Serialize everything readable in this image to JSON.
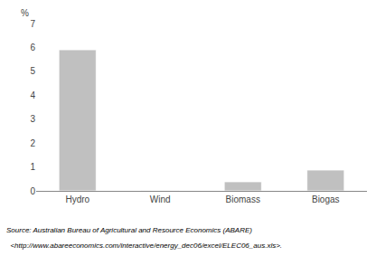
{
  "chart_data": {
    "type": "bar",
    "ylabel": "%",
    "categories": [
      "Hydro",
      "Wind",
      "Biomass",
      "Biogas"
    ],
    "values": [
      5.9,
      0.02,
      0.38,
      0.87
    ],
    "color": "#c0c0c0",
    "ylim": [
      0,
      7
    ],
    "yticks": [
      0,
      1,
      2,
      3,
      4,
      5,
      6,
      7
    ],
    "grid": false,
    "annotations": [
      "Source: Australian Bureau of Agricultural and Resource Economics (ABARE)",
      "  <http://www.abareeconomics.com/interactive/energy_dec06/excel/ELEC06_aus.xls>."
    ]
  }
}
